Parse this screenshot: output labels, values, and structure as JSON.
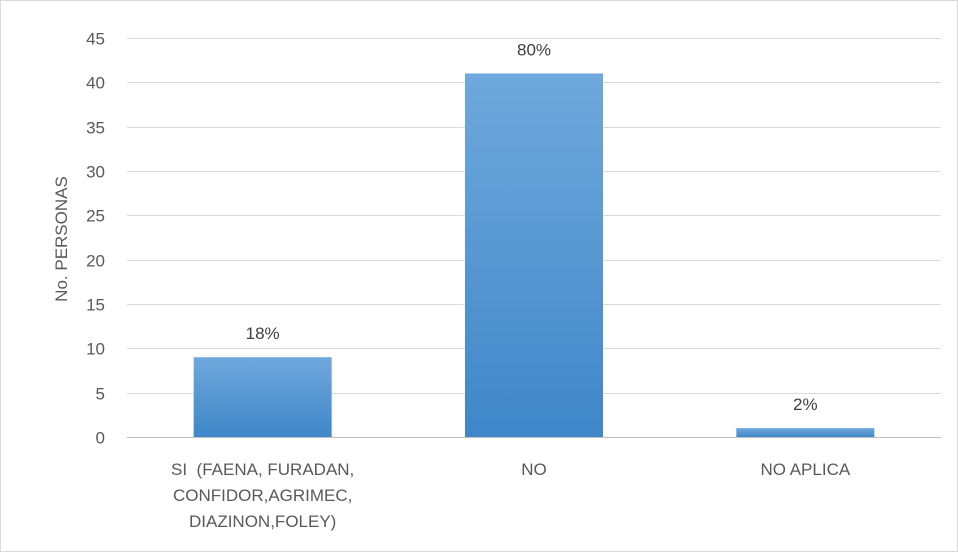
{
  "chart_data": {
    "type": "bar",
    "title": "",
    "xlabel": "",
    "ylabel": "No. PERSONAS",
    "ylim": [
      0,
      45
    ],
    "ytick_step": 5,
    "grid": true,
    "legend": "none",
    "categories": [
      [
        "SI  (FAENA, FURADAN,",
        "CONFIDOR,AGRIMEC,",
        "DIAZINON,FOLEY)"
      ],
      [
        "NO"
      ],
      [
        "NO APLICA"
      ]
    ],
    "values": [
      9,
      41,
      1
    ],
    "data_labels": [
      "18%",
      "80%",
      "2%"
    ],
    "colors": {
      "bar_top": "#6fa8dc",
      "bar_bottom": "#3f87c9"
    }
  }
}
